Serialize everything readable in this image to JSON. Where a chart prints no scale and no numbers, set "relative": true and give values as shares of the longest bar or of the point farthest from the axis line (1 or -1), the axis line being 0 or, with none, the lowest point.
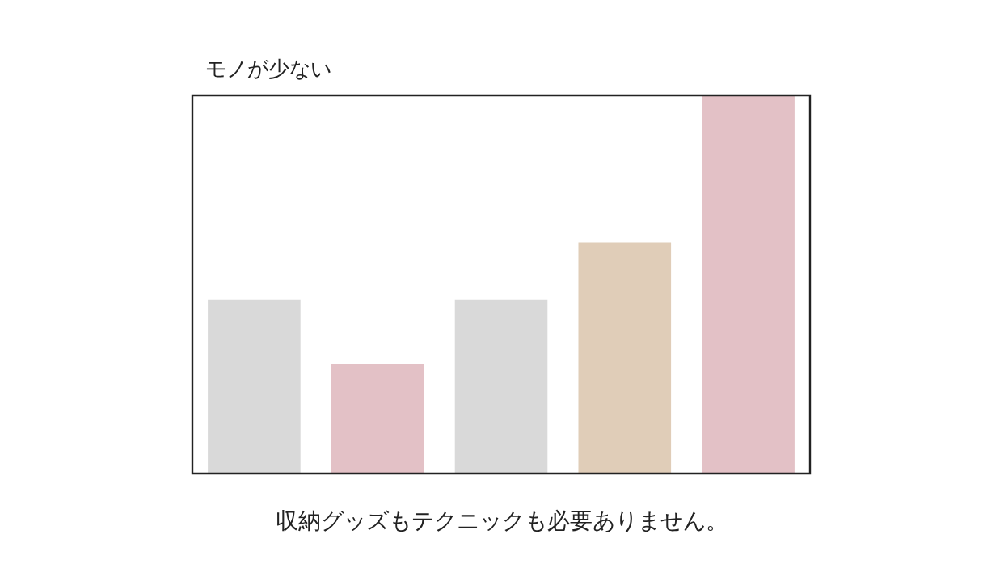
{
  "chart_data": {
    "type": "bar",
    "title": "モノが少ない",
    "annotations": [
      "収納グッズもテクニックも必要ありません。"
    ],
    "relative": true,
    "categories": [
      null,
      null,
      null,
      null,
      null
    ],
    "values": [
      0.46,
      0.29,
      0.46,
      0.61,
      1
    ],
    "colors": [
      "#d9d9d9",
      "#e3c1c6",
      "#d9d9d9",
      "#e0cdb8",
      "#e3c1c6"
    ]
  }
}
